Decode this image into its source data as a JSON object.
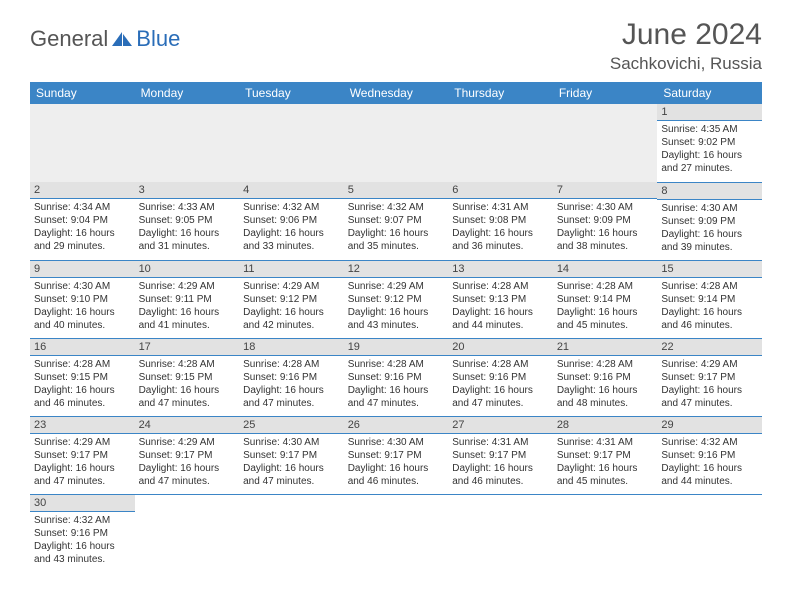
{
  "brand": {
    "part1": "General",
    "part2": "Blue"
  },
  "title": "June 2024",
  "location": "Sachkovichi, Russia",
  "colors": {
    "header_bg": "#3b85c6",
    "header_fg": "#ffffff",
    "daynum_bg": "#e2e2e2",
    "rule": "#3b85c6",
    "brand_gray": "#555555",
    "brand_blue": "#2a6db8",
    "body_bg": "#ffffff"
  },
  "weekdays": [
    "Sunday",
    "Monday",
    "Tuesday",
    "Wednesday",
    "Thursday",
    "Friday",
    "Saturday"
  ],
  "first_weekday_index": 6,
  "days": [
    {
      "n": 1,
      "sr": "4:35 AM",
      "ss": "9:02 PM",
      "dl": "16 hours and 27 minutes."
    },
    {
      "n": 2,
      "sr": "4:34 AM",
      "ss": "9:04 PM",
      "dl": "16 hours and 29 minutes."
    },
    {
      "n": 3,
      "sr": "4:33 AM",
      "ss": "9:05 PM",
      "dl": "16 hours and 31 minutes."
    },
    {
      "n": 4,
      "sr": "4:32 AM",
      "ss": "9:06 PM",
      "dl": "16 hours and 33 minutes."
    },
    {
      "n": 5,
      "sr": "4:32 AM",
      "ss": "9:07 PM",
      "dl": "16 hours and 35 minutes."
    },
    {
      "n": 6,
      "sr": "4:31 AM",
      "ss": "9:08 PM",
      "dl": "16 hours and 36 minutes."
    },
    {
      "n": 7,
      "sr": "4:30 AM",
      "ss": "9:09 PM",
      "dl": "16 hours and 38 minutes."
    },
    {
      "n": 8,
      "sr": "4:30 AM",
      "ss": "9:09 PM",
      "dl": "16 hours and 39 minutes."
    },
    {
      "n": 9,
      "sr": "4:30 AM",
      "ss": "9:10 PM",
      "dl": "16 hours and 40 minutes."
    },
    {
      "n": 10,
      "sr": "4:29 AM",
      "ss": "9:11 PM",
      "dl": "16 hours and 41 minutes."
    },
    {
      "n": 11,
      "sr": "4:29 AM",
      "ss": "9:12 PM",
      "dl": "16 hours and 42 minutes."
    },
    {
      "n": 12,
      "sr": "4:29 AM",
      "ss": "9:12 PM",
      "dl": "16 hours and 43 minutes."
    },
    {
      "n": 13,
      "sr": "4:28 AM",
      "ss": "9:13 PM",
      "dl": "16 hours and 44 minutes."
    },
    {
      "n": 14,
      "sr": "4:28 AM",
      "ss": "9:14 PM",
      "dl": "16 hours and 45 minutes."
    },
    {
      "n": 15,
      "sr": "4:28 AM",
      "ss": "9:14 PM",
      "dl": "16 hours and 46 minutes."
    },
    {
      "n": 16,
      "sr": "4:28 AM",
      "ss": "9:15 PM",
      "dl": "16 hours and 46 minutes."
    },
    {
      "n": 17,
      "sr": "4:28 AM",
      "ss": "9:15 PM",
      "dl": "16 hours and 47 minutes."
    },
    {
      "n": 18,
      "sr": "4:28 AM",
      "ss": "9:16 PM",
      "dl": "16 hours and 47 minutes."
    },
    {
      "n": 19,
      "sr": "4:28 AM",
      "ss": "9:16 PM",
      "dl": "16 hours and 47 minutes."
    },
    {
      "n": 20,
      "sr": "4:28 AM",
      "ss": "9:16 PM",
      "dl": "16 hours and 47 minutes."
    },
    {
      "n": 21,
      "sr": "4:28 AM",
      "ss": "9:16 PM",
      "dl": "16 hours and 48 minutes."
    },
    {
      "n": 22,
      "sr": "4:29 AM",
      "ss": "9:17 PM",
      "dl": "16 hours and 47 minutes."
    },
    {
      "n": 23,
      "sr": "4:29 AM",
      "ss": "9:17 PM",
      "dl": "16 hours and 47 minutes."
    },
    {
      "n": 24,
      "sr": "4:29 AM",
      "ss": "9:17 PM",
      "dl": "16 hours and 47 minutes."
    },
    {
      "n": 25,
      "sr": "4:30 AM",
      "ss": "9:17 PM",
      "dl": "16 hours and 47 minutes."
    },
    {
      "n": 26,
      "sr": "4:30 AM",
      "ss": "9:17 PM",
      "dl": "16 hours and 46 minutes."
    },
    {
      "n": 27,
      "sr": "4:31 AM",
      "ss": "9:17 PM",
      "dl": "16 hours and 46 minutes."
    },
    {
      "n": 28,
      "sr": "4:31 AM",
      "ss": "9:17 PM",
      "dl": "16 hours and 45 minutes."
    },
    {
      "n": 29,
      "sr": "4:32 AM",
      "ss": "9:16 PM",
      "dl": "16 hours and 44 minutes."
    },
    {
      "n": 30,
      "sr": "4:32 AM",
      "ss": "9:16 PM",
      "dl": "16 hours and 43 minutes."
    }
  ],
  "labels": {
    "sunrise": "Sunrise:",
    "sunset": "Sunset:",
    "daylight": "Daylight:"
  }
}
